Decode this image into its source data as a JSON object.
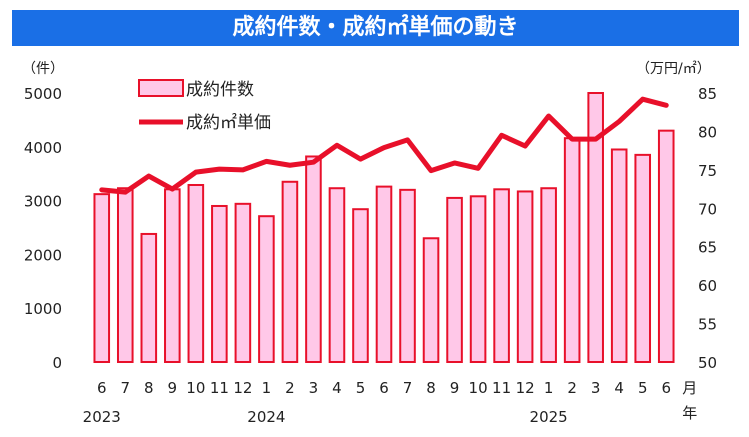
{
  "chart_data": {
    "type": "bar+line",
    "title": "成約件数・成約㎡単価の動き",
    "left_unit": "（件）",
    "right_unit": "（万円/㎡）",
    "month_axis_suffix": "月",
    "year_axis_suffix": "年",
    "categories": [
      "6",
      "7",
      "8",
      "9",
      "10",
      "11",
      "12",
      "1",
      "2",
      "3",
      "4",
      "5",
      "6",
      "7",
      "8",
      "9",
      "10",
      "11",
      "12",
      "1",
      "2",
      "3",
      "4",
      "5",
      "6"
    ],
    "year_labels": [
      {
        "label": "2023",
        "at_index": 0
      },
      {
        "label": "2024",
        "at_index": 7
      },
      {
        "label": "2025",
        "at_index": 19
      }
    ],
    "left_ylim": [
      0,
      5000
    ],
    "left_yticks": [
      "0",
      "1000",
      "2000",
      "3000",
      "4000",
      "5000"
    ],
    "right_ylim": [
      50,
      85
    ],
    "right_yticks": [
      "50",
      "55",
      "60",
      "65",
      "70",
      "75",
      "80",
      "85"
    ],
    "series": [
      {
        "name": "成約件数",
        "kind": "bar",
        "axis": "left",
        "fill": "#ffc8e8",
        "stroke": "#e8102a",
        "values": [
          3120,
          3230,
          2380,
          3210,
          3290,
          2900,
          2940,
          2710,
          3350,
          3820,
          3230,
          2840,
          3260,
          3200,
          2300,
          3050,
          3080,
          3210,
          3170,
          3230,
          4160,
          5000,
          3950,
          3850,
          4300
        ]
      },
      {
        "name": "成約㎡単価",
        "kind": "line",
        "axis": "right",
        "stroke": "#e8102a",
        "values": [
          72.4,
          72.1,
          74.2,
          72.5,
          74.7,
          75.1,
          75.0,
          76.1,
          75.6,
          76.0,
          78.2,
          76.4,
          77.9,
          78.9,
          74.9,
          75.9,
          75.2,
          79.5,
          78.1,
          82.0,
          79.0,
          79.0,
          81.3,
          84.2,
          83.4
        ]
      }
    ]
  }
}
